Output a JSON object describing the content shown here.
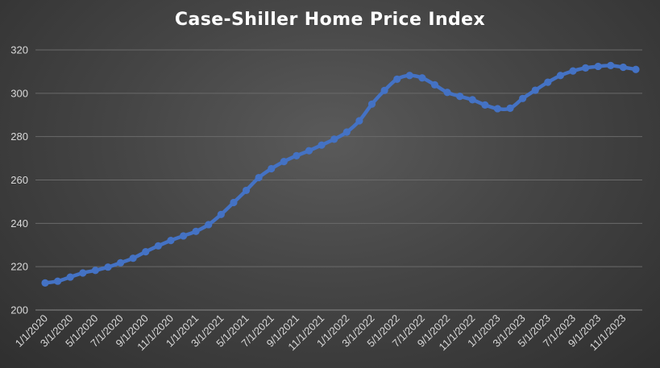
{
  "chart_data": {
    "type": "line",
    "title": "Case-Shiller Home Price Index",
    "xlabel": "",
    "ylabel": "",
    "ylim": [
      200,
      320
    ],
    "yticks": [
      200,
      220,
      240,
      260,
      280,
      300,
      320
    ],
    "grid": true,
    "legend": "none",
    "x_tick_labels": [
      "1/1/2020",
      "3/1/2020",
      "5/1/2020",
      "7/1/2020",
      "9/1/2020",
      "11/1/2020",
      "1/1/2021",
      "3/1/2021",
      "5/1/2021",
      "7/1/2021",
      "9/1/2021",
      "11/1/2021",
      "1/1/2022",
      "3/1/2022",
      "5/1/2022",
      "7/1/2022",
      "9/1/2022",
      "11/1/2022",
      "1/1/2023",
      "3/1/2023",
      "5/1/2023",
      "7/1/2023",
      "9/1/2023",
      "11/1/2023"
    ],
    "x": [
      "1/1/2020",
      "2/1/2020",
      "3/1/2020",
      "4/1/2020",
      "5/1/2020",
      "6/1/2020",
      "7/1/2020",
      "8/1/2020",
      "9/1/2020",
      "10/1/2020",
      "11/1/2020",
      "12/1/2020",
      "1/1/2021",
      "2/1/2021",
      "3/1/2021",
      "4/1/2021",
      "5/1/2021",
      "6/1/2021",
      "7/1/2021",
      "8/1/2021",
      "9/1/2021",
      "10/1/2021",
      "11/1/2021",
      "12/1/2021",
      "1/1/2022",
      "2/1/2022",
      "3/1/2022",
      "4/1/2022",
      "5/1/2022",
      "6/1/2022",
      "7/1/2022",
      "8/1/2022",
      "9/1/2022",
      "10/1/2022",
      "11/1/2022",
      "12/1/2022",
      "1/1/2023",
      "2/1/2023",
      "3/1/2023",
      "4/1/2023",
      "5/1/2023",
      "6/1/2023",
      "7/1/2023",
      "8/1/2023",
      "9/1/2023",
      "10/1/2023",
      "11/1/2023",
      "12/1/2023"
    ],
    "series": [
      {
        "color": "#4472c4",
        "values": [
          212.5,
          213.3,
          215.2,
          217.1,
          218.3,
          219.8,
          221.8,
          223.9,
          226.9,
          229.6,
          232.1,
          234.2,
          236.3,
          239.4,
          244.1,
          249.6,
          255.2,
          261.1,
          265.2,
          268.5,
          271.2,
          273.5,
          276.1,
          278.8,
          282.1,
          287.3,
          295.0,
          301.3,
          306.5,
          308.2,
          307.1,
          303.9,
          300.4,
          298.6,
          297.0,
          294.6,
          292.9,
          293.1,
          297.6,
          301.4,
          305.1,
          308.2,
          310.3,
          311.7,
          312.4,
          312.8,
          312.0,
          311.0
        ]
      }
    ]
  }
}
